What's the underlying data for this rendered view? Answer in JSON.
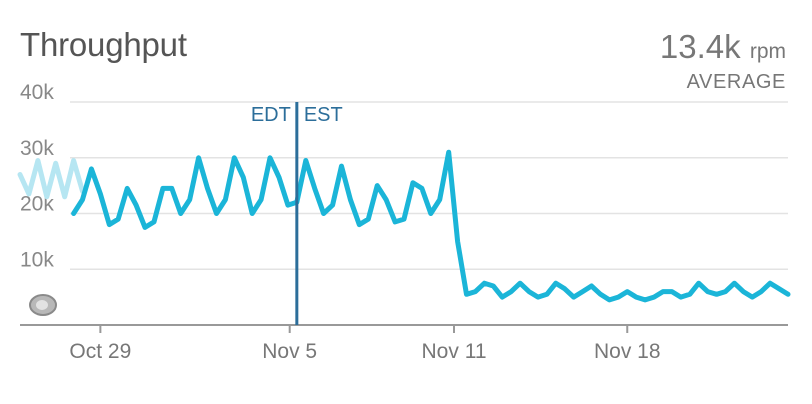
{
  "widget": {
    "title": "Throughput",
    "summary_value": "13.4k",
    "summary_unit": "rpm",
    "summary_label": "AVERAGE"
  },
  "colors": {
    "series": "#1bb5d8",
    "series_faded": "#b6e6f2",
    "marker": "#2c6e9a",
    "grid": "#e3e3e3",
    "axis": "#999999"
  },
  "chart_data": {
    "type": "line",
    "title": "Throughput",
    "xlabel": "",
    "ylabel": "",
    "ylim": [
      0,
      40000
    ],
    "yticks": [
      "40k",
      "30k",
      "20k",
      "10k"
    ],
    "ytick_values": [
      40000,
      30000,
      20000,
      10000
    ],
    "x_ticks": [
      {
        "label": "Oct 29",
        "x": 4.5
      },
      {
        "label": "Nov 5",
        "x": 15.1
      },
      {
        "label": "Nov 11",
        "x": 24.3
      },
      {
        "label": "Nov 18",
        "x": 34.0
      }
    ],
    "xlim": [
      0,
      43
    ],
    "timezone_marker": {
      "x": 15.5,
      "left_label": "EDT",
      "right_label": "EST"
    },
    "series": [
      {
        "style": "faded",
        "x": [
          0,
          0.5,
          1,
          1.5,
          2,
          2.5,
          3,
          3.5
        ],
        "values": [
          27000,
          23500,
          29500,
          23000,
          29000,
          23000,
          29500,
          24000
        ]
      },
      {
        "style": "solid",
        "x": [
          3,
          3.5,
          4,
          4.5,
          5,
          5.5,
          6,
          6.5,
          7,
          7.5,
          8,
          8.5,
          9,
          9.5,
          10,
          10.5,
          11,
          11.5,
          12,
          12.5,
          13,
          13.5,
          14,
          14.5,
          15,
          15.5,
          16,
          16.5,
          17,
          17.5,
          18,
          18.5,
          19,
          19.5,
          20,
          20.5,
          21,
          21.5,
          22,
          22.5,
          23,
          23.5,
          24,
          24.5,
          25,
          25.5,
          26,
          26.5,
          27,
          27.5,
          28,
          28.5,
          29,
          29.5,
          30,
          30.5,
          31,
          31.5,
          32,
          32.5,
          33,
          33.5,
          34,
          34.5,
          35,
          35.5,
          36,
          36.5,
          37,
          37.5,
          38,
          38.5,
          39,
          39.5,
          40,
          40.5,
          41,
          41.5,
          42,
          42.5,
          43
        ],
        "values": [
          20000,
          22500,
          28000,
          23500,
          18000,
          19000,
          24500,
          21500,
          17500,
          18500,
          24500,
          24500,
          20000,
          22500,
          30000,
          24500,
          20000,
          22500,
          30000,
          26500,
          20000,
          22500,
          30000,
          26500,
          21500,
          22000,
          29500,
          24500,
          20000,
          21500,
          28500,
          22500,
          18000,
          19000,
          25000,
          22500,
          18500,
          19000,
          25500,
          24500,
          20000,
          22500,
          31000,
          15000,
          5500,
          6000,
          7500,
          7000,
          5000,
          6000,
          7500,
          6000,
          5000,
          5500,
          7500,
          6500,
          5000,
          6000,
          7000,
          5500,
          4500,
          5000,
          6000,
          5000,
          4500,
          5000,
          6000,
          6000,
          5000,
          5500,
          7500,
          6000,
          5500,
          6000,
          7500,
          6000,
          5000,
          6000,
          7500,
          6500,
          5500
        ]
      }
    ],
    "legend": "none",
    "grid": true
  }
}
